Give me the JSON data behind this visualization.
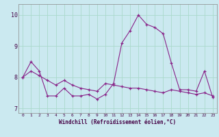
{
  "title": "",
  "xlabel": "Windchill (Refroidissement éolien,°C)",
  "background_color": "#cbe9f0",
  "grid_color": "#aad9cc",
  "line_color": "#882288",
  "xlim": [
    -0.5,
    23.5
  ],
  "ylim": [
    6.85,
    10.35
  ],
  "yticks": [
    7,
    8,
    9,
    10
  ],
  "xticks": [
    0,
    1,
    2,
    3,
    4,
    5,
    6,
    7,
    8,
    9,
    10,
    11,
    12,
    13,
    14,
    15,
    16,
    17,
    18,
    19,
    20,
    21,
    22,
    23
  ],
  "line1_x": [
    0,
    1,
    2,
    3,
    4,
    5,
    6,
    7,
    8,
    9,
    10,
    11,
    12,
    13,
    14,
    15,
    16,
    17,
    18,
    19,
    20,
    21,
    22,
    23
  ],
  "line1_y": [
    8.0,
    8.5,
    8.2,
    7.4,
    7.4,
    7.65,
    7.4,
    7.4,
    7.45,
    7.3,
    7.45,
    7.8,
    9.1,
    9.5,
    10.0,
    9.7,
    9.6,
    9.4,
    8.45,
    7.6,
    7.6,
    7.55,
    8.2,
    7.35
  ],
  "line2_x": [
    0,
    1,
    2,
    3,
    4,
    5,
    6,
    7,
    8,
    9,
    10,
    11,
    12,
    13,
    14,
    15,
    16,
    17,
    18,
    19,
    20,
    21,
    22,
    23
  ],
  "line2_y": [
    8.0,
    8.2,
    8.05,
    7.9,
    7.75,
    7.9,
    7.75,
    7.65,
    7.6,
    7.55,
    7.8,
    7.75,
    7.7,
    7.65,
    7.65,
    7.6,
    7.55,
    7.5,
    7.6,
    7.55,
    7.5,
    7.45,
    7.5,
    7.4
  ]
}
